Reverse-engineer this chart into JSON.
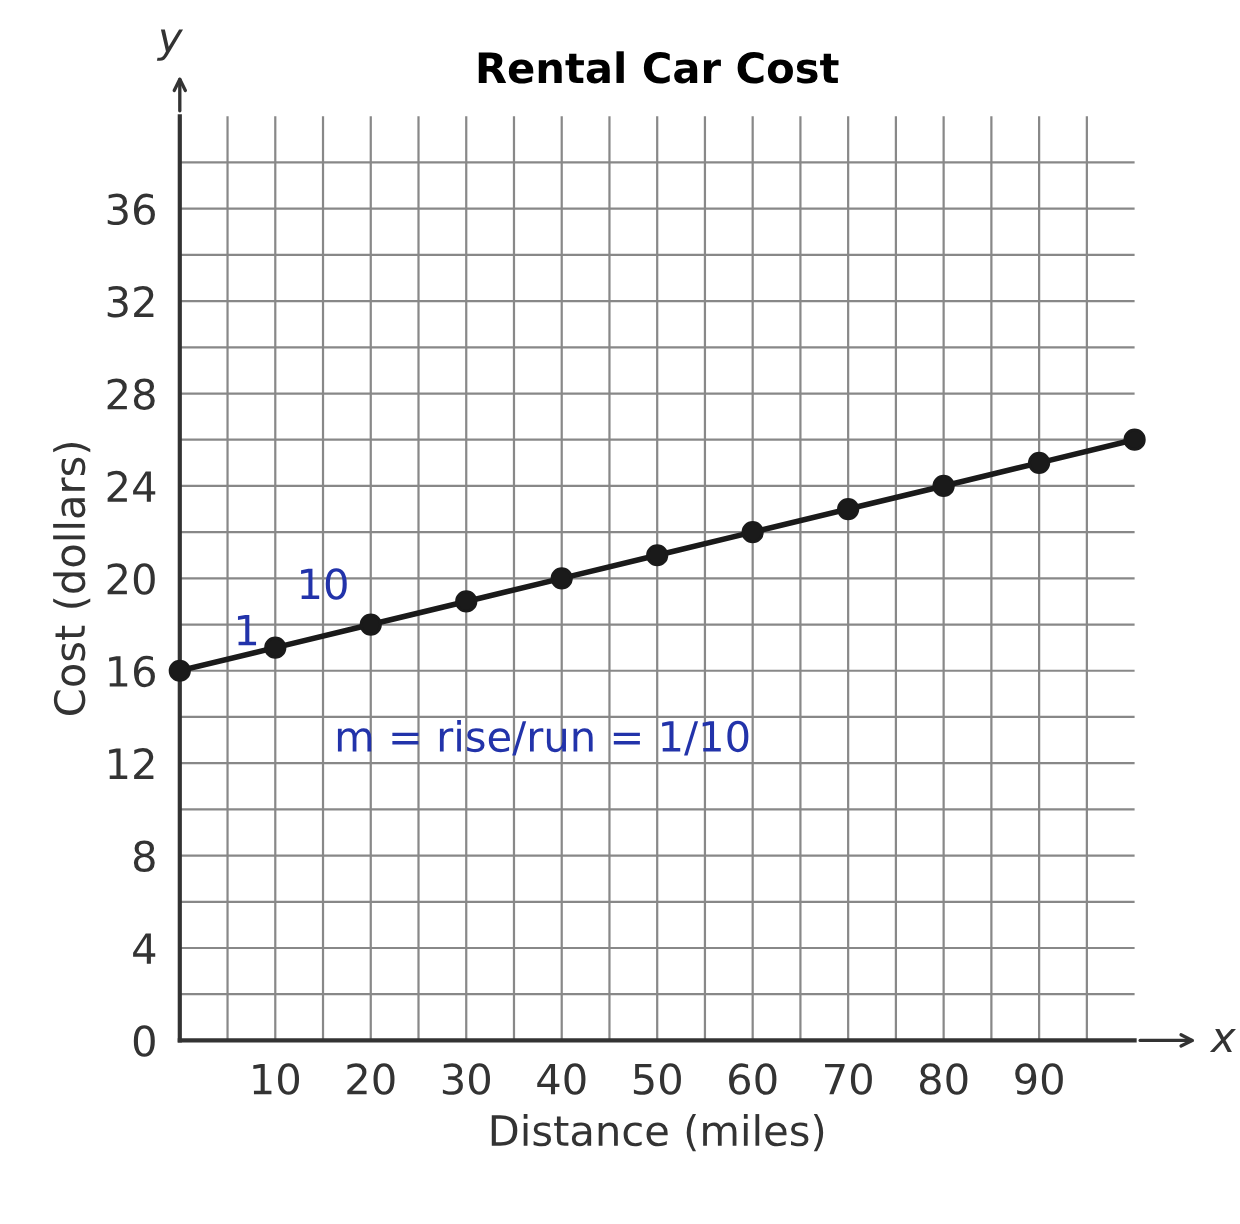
{
  "chart_data": {
    "type": "line",
    "title": "Rental Car Cost",
    "xlabel": "Distance (miles)",
    "ylabel": "Cost (dollars)",
    "x": [
      0,
      10,
      20,
      30,
      40,
      50,
      60,
      70,
      80,
      90,
      100
    ],
    "series": [
      {
        "color": "#1a1a1a",
        "values": [
          16,
          17,
          18,
          19,
          20,
          21,
          22,
          23,
          24,
          25,
          26
        ]
      }
    ],
    "marker": "circle",
    "line_style": "solid",
    "grid": true,
    "xlim": [
      0,
      100
    ],
    "xticks": [
      {
        "value": 5,
        "label": null
      },
      10,
      {
        "value": 15,
        "label": null
      },
      20,
      {
        "value": 25,
        "label": null
      },
      30,
      {
        "value": 35,
        "label": null
      },
      40,
      {
        "value": 45,
        "label": null
      },
      50,
      {
        "value": 55,
        "label": null
      },
      60,
      {
        "value": 65,
        "label": null
      },
      70,
      {
        "value": 75,
        "label": null
      },
      80,
      {
        "value": 85,
        "label": null
      },
      90,
      {
        "value": 95,
        "label": null
      }
    ],
    "ylim": [
      0,
      40
    ],
    "yticks": [
      0,
      {
        "value": 2,
        "label": null
      },
      4,
      {
        "value": 6,
        "label": null
      },
      8,
      {
        "value": 10,
        "label": null
      },
      12,
      {
        "value": 14,
        "label": null
      },
      16,
      {
        "value": 18,
        "label": null
      },
      20,
      {
        "value": 22,
        "label": null
      },
      24,
      {
        "value": 26,
        "label": null
      },
      28,
      {
        "value": 30,
        "label": null
      },
      32,
      {
        "value": 34,
        "label": null
      },
      36,
      {
        "value": 38,
        "label": null
      }
    ],
    "annotations": [
      "x",
      "y",
      "10",
      "1",
      "m = rise/run = 1/10"
    ]
  }
}
